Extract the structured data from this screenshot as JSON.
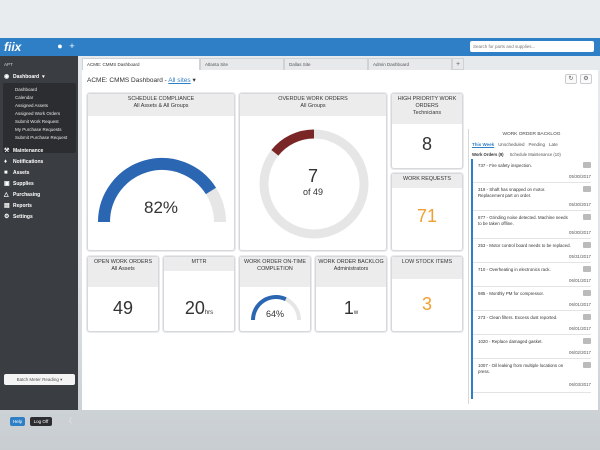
{
  "app": {
    "logo": "fiix",
    "search_placeholder": "Search for parts and supplies..."
  },
  "sidebar": {
    "org": "APT",
    "dashboard_label": "Dashboard",
    "dashboard_items": [
      "Dashboard",
      "Calendar",
      "Assigned Assets",
      "Assigned Work Orders",
      "Submit Work Request",
      "My Purchase Requests",
      "Submit Purchase Request"
    ],
    "sections": [
      "Maintenance",
      "Notifications",
      "Assets",
      "Supplies",
      "Purchasing",
      "Reports",
      "Settings"
    ],
    "batch_button": "Batch Meter Reading",
    "help": "Help",
    "logoff": "Log Off"
  },
  "tabs": [
    "ACME: CMMS Dashboard",
    "Atlanta Site",
    "Dallas Site",
    "Admin Dashboard"
  ],
  "header": {
    "title": "ACME: CMMS Dashboard -",
    "site_link": "All sites"
  },
  "widgets": {
    "schedule_compliance": {
      "title": "SCHEDULE COMPLIANCE",
      "subtitle": "All Assets & All Groups",
      "value": "82%",
      "percent": 82
    },
    "overdue_wo": {
      "title": "OVERDUE WORK ORDERS",
      "subtitle": "All Groups",
      "value": "7",
      "total": "of 49"
    },
    "high_priority": {
      "title": "HIGH PRIORITY WORK ORDERS",
      "subtitle": "Technicians",
      "value": "8"
    },
    "work_requests": {
      "title": "WORK REQUESTS",
      "value": "71"
    },
    "open_wo": {
      "title": "OPEN WORK ORDERS",
      "subtitle": "All Assets",
      "value": "49"
    },
    "mttr": {
      "title": "MTTR",
      "value": "20",
      "unit": "hrs"
    },
    "on_time": {
      "title": "WORK ORDER ON-TIME COMPLETION",
      "value": "64%",
      "percent": 64
    },
    "backlog_wo": {
      "title": "WORK ORDER BACKLOG",
      "subtitle": "Administrators",
      "value": "1",
      "unit": "w"
    },
    "low_stock": {
      "title": "LOW STOCK ITEMS",
      "value": "3"
    }
  },
  "backlog": {
    "title": "WORK ORDER BACKLOG",
    "filters": [
      "This Week",
      "Unscheduled",
      "Pending",
      "Late"
    ],
    "subtabs": [
      "Work Orders (9)",
      "Schedule Maintenance (10)"
    ],
    "items": [
      {
        "text": "737 - Fire safety inspection.",
        "date": "05/30/2017"
      },
      {
        "text": "319 - Shaft has snapped on motor. Replacement part on order.",
        "date": "05/30/2017"
      },
      {
        "text": "877 - Grinding noise detected. Machine needs to be taken offline.",
        "date": "05/30/2017"
      },
      {
        "text": "253 - Motor control board needs to be replaced.",
        "date": "05/31/2017"
      },
      {
        "text": "710 - Overheating in electronics rack.",
        "date": "06/01/2017"
      },
      {
        "text": "985 - Monthly PM for compressor.",
        "date": "06/01/2017"
      },
      {
        "text": "273 - Clean filters. Excess dust reported.",
        "date": "06/01/2017"
      },
      {
        "text": "1020 - Replace damaged gasket.",
        "date": "06/02/2017"
      },
      {
        "text": "1007 - Oil leaking from multiple locations on press.",
        "date": "06/03/2017"
      }
    ]
  },
  "colors": {
    "brand": "#2f7fc7",
    "gauge_blue": "#2b66b3",
    "overdue_red": "#7a2626",
    "accent_orange": "#f0a030"
  }
}
